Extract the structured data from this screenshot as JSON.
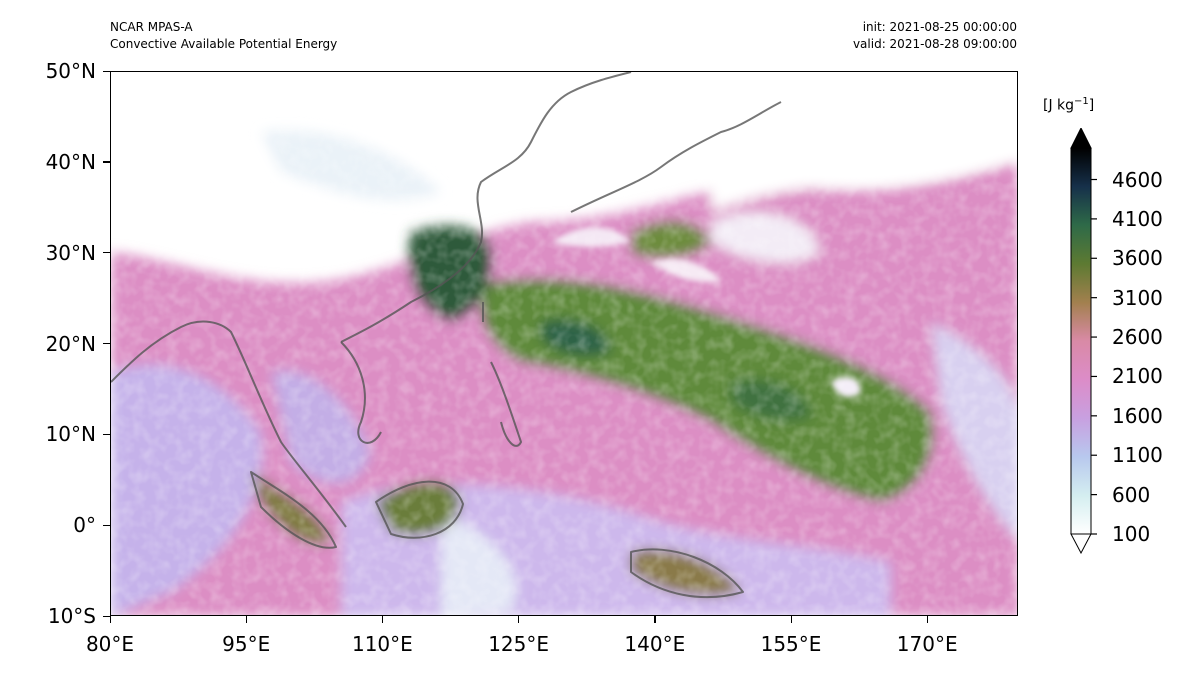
{
  "header": {
    "model": "NCAR MPAS-A",
    "field": "Convective Available Potential Energy",
    "init": "init: 2021-08-25 00:00:00",
    "valid": "valid: 2021-08-28 09:00:00"
  },
  "axes": {
    "lat_labels": [
      "50°N",
      "40°N",
      "30°N",
      "20°N",
      "10°N",
      "0°",
      "10°S"
    ],
    "lon_labels": [
      "80°E",
      "95°E",
      "110°E",
      "125°E",
      "140°E",
      "155°E",
      "170°E"
    ],
    "lat_values": [
      50,
      40,
      30,
      20,
      10,
      0,
      -10
    ],
    "lon_values": [
      80,
      95,
      110,
      125,
      140,
      155,
      170
    ],
    "lon_range": [
      80,
      180
    ],
    "lat_range": [
      -10,
      50
    ]
  },
  "colorbar": {
    "unit_prefix": "[J kg",
    "unit_exp": "−1",
    "unit_suffix": "]",
    "labels": [
      "4600",
      "4100",
      "3600",
      "3100",
      "2600",
      "2100",
      "1600",
      "1100",
      "600",
      "100"
    ],
    "values": [
      4600,
      4100,
      3600,
      3100,
      2600,
      2100,
      1600,
      1100,
      600,
      100
    ],
    "range": [
      100,
      5000
    ],
    "extend": "both",
    "colors": [
      "#ffffff",
      "#d4eef0",
      "#b8c8ee",
      "#c8a0e0",
      "#dc8cc8",
      "#d98aa6",
      "#a2804e",
      "#5d7a32",
      "#2e6a48",
      "#16304a",
      "#000000"
    ]
  },
  "colors": {
    "coastline": "#555555",
    "land_dark": "#3c5a2e",
    "ocean_green": "#5f8a3a",
    "pink": "#dc8ec4",
    "lavender": "#c3aee6",
    "pale": "#eaf4f8"
  }
}
